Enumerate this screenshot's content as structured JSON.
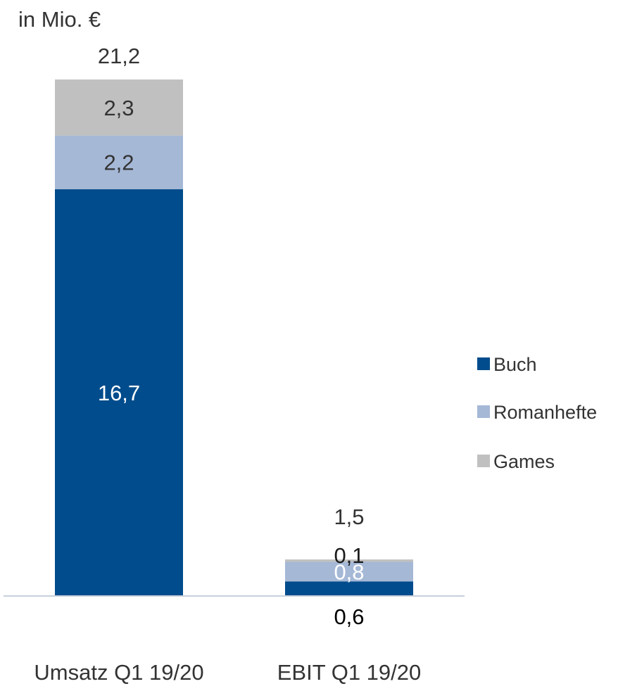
{
  "chart_data": {
    "type": "bar",
    "stacked": true,
    "unit_label": "in Mio. €",
    "categories": [
      "Umsatz Q1 19/20",
      "EBIT Q1 19/20"
    ],
    "series": [
      {
        "name": "Buch",
        "values": [
          16.7,
          0.6
        ],
        "labels": [
          "16,7",
          "0,6"
        ],
        "color": "#004c8c"
      },
      {
        "name": "Romanhefte",
        "values": [
          2.2,
          0.8
        ],
        "labels": [
          "2,2",
          "0,8"
        ],
        "color": "#a5b8d6"
      },
      {
        "name": "Games",
        "values": [
          2.3,
          0.1
        ],
        "labels": [
          "2,3",
          "0,1"
        ],
        "color": "#c0c0c0"
      }
    ],
    "totals": [
      21.2,
      1.5
    ],
    "total_labels": [
      "21,2",
      "1,5"
    ],
    "ylim": [
      0,
      21.2
    ],
    "grid": false,
    "legend_position": "right",
    "label_colors": {
      "on_dark": "#ffffff",
      "on_light": "#333333",
      "ebit_buch": "#000000",
      "ebit_romanhefte": "#ffffff",
      "ebit_games": "#1a1a1a"
    }
  }
}
